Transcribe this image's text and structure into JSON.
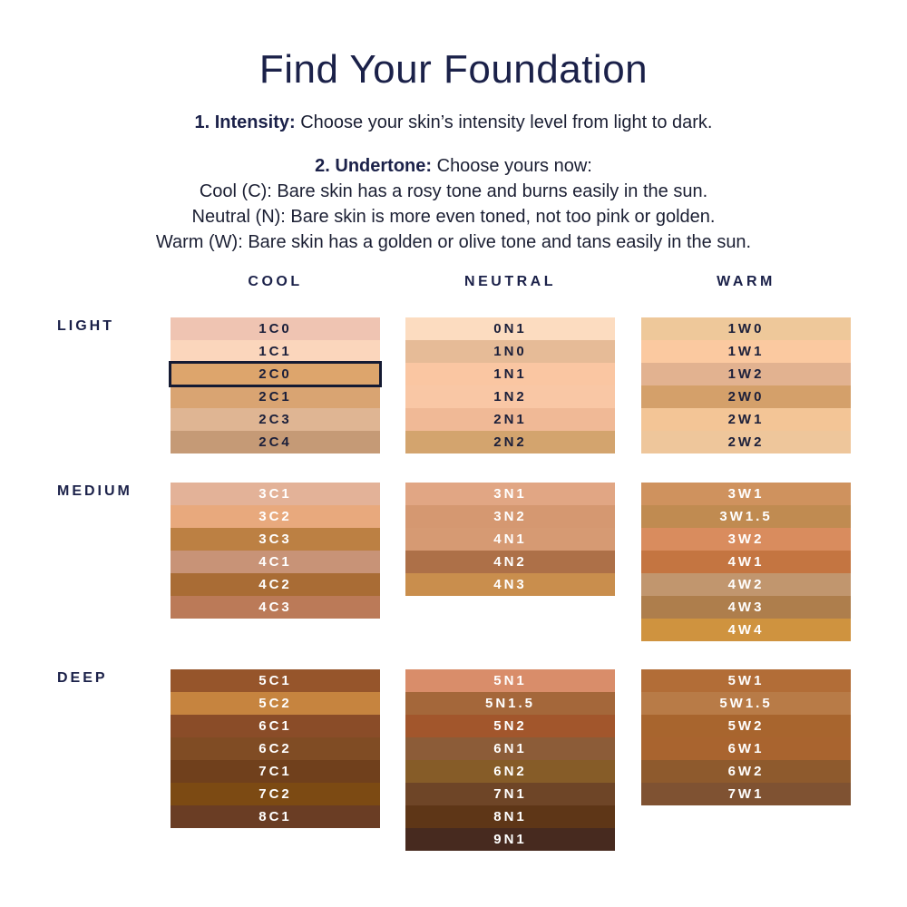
{
  "title": "Find Your Foundation",
  "step1": {
    "label": "1. Intensity:",
    "text": " Choose your skin’s intensity level from light to dark."
  },
  "step2": {
    "label": "2. Undertone:",
    "text": " Choose yours now:"
  },
  "undertones": [
    "Cool (C): Bare skin has a rosy tone and burns easily in the sun.",
    "Neutral (N): Bare skin is more even toned, not too pink or golden.",
    "Warm (W): Bare skin has a golden or olive tone and tans easily in the sun."
  ],
  "columns": [
    "COOL",
    "NEUTRAL",
    "WARM"
  ],
  "selected": "2C0",
  "levels": [
    {
      "label": "LIGHT",
      "text_color": "#1b1f3a",
      "groups": [
        [
          [
            "1C0",
            "#efc4b2"
          ],
          [
            "1C1",
            "#fbd6bc"
          ],
          [
            "2C0",
            "#dda56c"
          ],
          [
            "2C1",
            "#d9a472"
          ],
          [
            "2C3",
            "#dfb593"
          ],
          [
            "2C4",
            "#c59a76"
          ]
        ],
        [
          [
            "0N1",
            "#fcdcc0"
          ],
          [
            "1N0",
            "#e6bb97"
          ],
          [
            "1N1",
            "#fac6a2"
          ],
          [
            "1N2",
            "#f9c7a5"
          ],
          [
            "2N1",
            "#f0b996"
          ],
          [
            "2N2",
            "#d3a46e"
          ]
        ],
        [
          [
            "1W0",
            "#eec89a"
          ],
          [
            "1W1",
            "#fbc9a0"
          ],
          [
            "1W2",
            "#e2b290"
          ],
          [
            "2W0",
            "#d4a06a"
          ],
          [
            "2W1",
            "#f3c596"
          ],
          [
            "2W2",
            "#eec69b"
          ]
        ]
      ]
    },
    {
      "label": "MEDIUM",
      "text_color": "#ffffff",
      "groups": [
        [
          [
            "3C1",
            "#e3b298"
          ],
          [
            "3C2",
            "#e8a97d"
          ],
          [
            "3C3",
            "#bc8043"
          ],
          [
            "4C1",
            "#c89377"
          ],
          [
            "4C2",
            "#a96c35"
          ],
          [
            "4C3",
            "#bb7a58"
          ]
        ],
        [
          [
            "3N1",
            "#e1a684"
          ],
          [
            "3N2",
            "#d59871"
          ],
          [
            "4N1",
            "#d69a73"
          ],
          [
            "4N2",
            "#ad7048"
          ],
          [
            "4N3",
            "#c98e4d"
          ]
        ],
        [
          [
            "3W1",
            "#cf925e"
          ],
          [
            "3W1.5",
            "#c08b51"
          ],
          [
            "3W2",
            "#d98c5e"
          ],
          [
            "4W1",
            "#c47541"
          ],
          [
            "4W2",
            "#c1966e"
          ],
          [
            "4W3",
            "#ae7e4c"
          ],
          [
            "4W4",
            "#cf933f"
          ]
        ]
      ]
    },
    {
      "label": "DEEP",
      "text_color": "#ffffff",
      "groups": [
        [
          [
            "5C1",
            "#96552b"
          ],
          [
            "5C2",
            "#c6843f"
          ],
          [
            "6C1",
            "#8a4c28"
          ],
          [
            "6C2",
            "#804c24"
          ],
          [
            "7C1",
            "#70401c"
          ],
          [
            "7C2",
            "#7c4a13"
          ],
          [
            "8C1",
            "#6a3d24"
          ]
        ],
        [
          [
            "5N1",
            "#d98d6a"
          ],
          [
            "5N1.5",
            "#a4673a"
          ],
          [
            "5N2",
            "#a2562c"
          ],
          [
            "6N1",
            "#8c5c38"
          ],
          [
            "6N2",
            "#865c28"
          ],
          [
            "7N1",
            "#6e4527"
          ],
          [
            "8N1",
            "#5e3617"
          ],
          [
            "9N1",
            "#472a1f"
          ]
        ],
        [
          [
            "5W1",
            "#b26d37"
          ],
          [
            "5W1.5",
            "#b87b47"
          ],
          [
            "5W2",
            "#a8652e"
          ],
          [
            "6W1",
            "#a9642f"
          ],
          [
            "6W2",
            "#8e5a2d"
          ],
          [
            "7W1",
            "#7f5232"
          ]
        ]
      ]
    }
  ]
}
